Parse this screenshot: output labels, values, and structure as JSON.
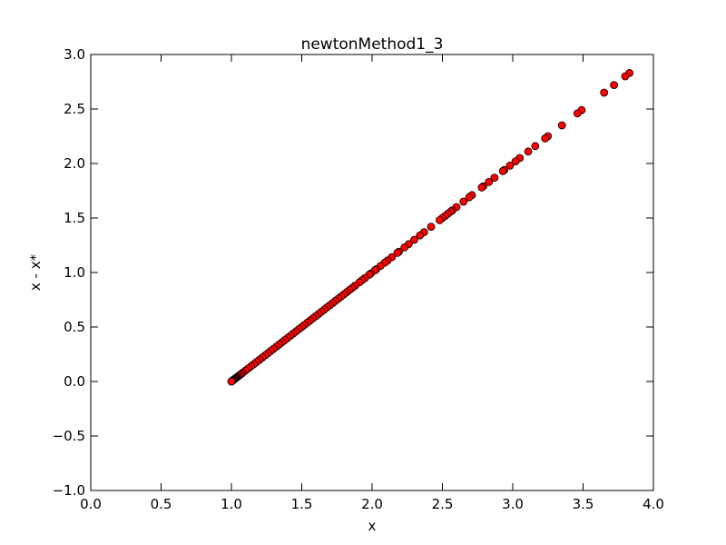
{
  "chart_data": {
    "type": "scatter",
    "title": "newtonMethod1_3",
    "xlabel": "x",
    "ylabel": "x - x*",
    "xlim": [
      0.0,
      4.0
    ],
    "ylim": [
      -1.0,
      3.0
    ],
    "xticks": [
      "0.0",
      "0.5",
      "1.0",
      "1.5",
      "2.0",
      "2.5",
      "3.0",
      "3.5",
      "4.0"
    ],
    "yticks": [
      "−1.0",
      "−0.5",
      "0.0",
      "0.5",
      "1.0",
      "1.5",
      "2.0",
      "2.5",
      "3.0"
    ],
    "grid": false,
    "marker_fill": "#ff0000",
    "marker_edge": "#000000",
    "series": [
      {
        "x": [
          3.83,
          3.8,
          3.72,
          3.65,
          3.49,
          3.46,
          3.35,
          3.25,
          3.23,
          3.16,
          3.11,
          3.05,
          3.02,
          2.98,
          2.94,
          2.93,
          2.87,
          2.83,
          2.79,
          2.78,
          2.71,
          2.69,
          2.65,
          2.6,
          2.57,
          2.56,
          2.54,
          2.52,
          2.5,
          2.48,
          2.42,
          2.37,
          2.34,
          2.3,
          2.26,
          2.23,
          2.19,
          2.18,
          2.14,
          2.11,
          2.09,
          2.06,
          2.03,
          2.02,
          1.99,
          1.98,
          1.95,
          1.93,
          1.91,
          1.88,
          1.86,
          1.84,
          1.82,
          1.8,
          1.78,
          1.76,
          1.74,
          1.72,
          1.7,
          1.68,
          1.66,
          1.64,
          1.62,
          1.6,
          1.58,
          1.56,
          1.54,
          1.52,
          1.5,
          1.48,
          1.46,
          1.44,
          1.42,
          1.4,
          1.38,
          1.36,
          1.34,
          1.32,
          1.3,
          1.28,
          1.26,
          1.24,
          1.22,
          1.2,
          1.18,
          1.16,
          1.14,
          1.12,
          1.1,
          1.08,
          1.07,
          1.06,
          1.05,
          1.04,
          1.035,
          1.03,
          1.025,
          1.02,
          1.015,
          1.01,
          1.007,
          1.004,
          1.002,
          1.001,
          1.0
        ],
        "y": [
          2.83,
          2.8,
          2.72,
          2.65,
          2.49,
          2.46,
          2.35,
          2.25,
          2.23,
          2.16,
          2.11,
          2.05,
          2.02,
          1.98,
          1.94,
          1.93,
          1.87,
          1.83,
          1.79,
          1.78,
          1.71,
          1.69,
          1.65,
          1.6,
          1.57,
          1.56,
          1.54,
          1.52,
          1.5,
          1.48,
          1.42,
          1.37,
          1.34,
          1.3,
          1.26,
          1.23,
          1.19,
          1.18,
          1.14,
          1.11,
          1.09,
          1.06,
          1.03,
          1.02,
          0.99,
          0.98,
          0.95,
          0.93,
          0.91,
          0.88,
          0.86,
          0.84,
          0.82,
          0.8,
          0.78,
          0.76,
          0.74,
          0.72,
          0.7,
          0.68,
          0.66,
          0.64,
          0.62,
          0.6,
          0.58,
          0.56,
          0.54,
          0.52,
          0.5,
          0.48,
          0.46,
          0.44,
          0.42,
          0.4,
          0.38,
          0.36,
          0.34,
          0.32,
          0.3,
          0.28,
          0.26,
          0.24,
          0.22,
          0.2,
          0.18,
          0.16,
          0.14,
          0.12,
          0.1,
          0.08,
          0.07,
          0.06,
          0.05,
          0.04,
          0.035,
          0.03,
          0.025,
          0.02,
          0.015,
          0.01,
          0.007,
          0.004,
          0.002,
          0.001,
          0.0
        ]
      }
    ]
  }
}
